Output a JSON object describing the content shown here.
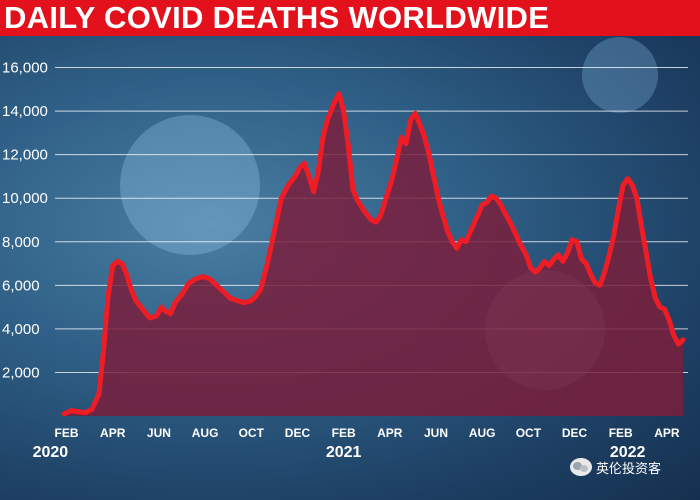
{
  "title": "DAILY COVID DEATHS WORLDWIDE",
  "watermark": "英伦投资客",
  "colors": {
    "title_bg": "#e3111b",
    "line": "#ee1c24",
    "area": "#7a1f3c",
    "grid": "#ffffff",
    "background": "#2f5f86"
  },
  "icons": [
    "virus-illustration",
    "wechat-icon"
  ],
  "chart_data": {
    "type": "area",
    "title": "DAILY COVID DEATHS WORLDWIDE",
    "xlabel": "",
    "ylabel": "",
    "ylim": [
      0,
      16000
    ],
    "yticks": [
      2000,
      4000,
      6000,
      8000,
      10000,
      12000,
      14000,
      16000
    ],
    "ytick_labels": [
      "2,000",
      "4,000",
      "6,000",
      "8,000",
      "10,000",
      "12,000",
      "14,000",
      "16,000"
    ],
    "grid": true,
    "legend": "none",
    "xtick_labels": [
      "FEB",
      "APR",
      "JUN",
      "AUG",
      "OCT",
      "DEC",
      "FEB",
      "APR",
      "JUN",
      "AUG",
      "OCT",
      "DEC",
      "FEB",
      "APR"
    ],
    "xtick_months": [
      1,
      3,
      5,
      7,
      9,
      11,
      13,
      15,
      17,
      19,
      21,
      23,
      25,
      27
    ],
    "year_labels": [
      {
        "label": "2020",
        "month": 0.3
      },
      {
        "label": "2021",
        "month": 13
      },
      {
        "label": "2022",
        "month": 25.3
      }
    ],
    "x_unit": "months since Jan 2020",
    "points": [
      [
        0.9,
        100
      ],
      [
        1.2,
        250
      ],
      [
        1.5,
        200
      ],
      [
        1.8,
        150
      ],
      [
        2.1,
        300
      ],
      [
        2.4,
        1000
      ],
      [
        2.6,
        3000
      ],
      [
        2.8,
        5500
      ],
      [
        3.0,
        6900
      ],
      [
        3.2,
        7100
      ],
      [
        3.4,
        7000
      ],
      [
        3.6,
        6500
      ],
      [
        3.8,
        5800
      ],
      [
        4.0,
        5300
      ],
      [
        4.3,
        4900
      ],
      [
        4.6,
        4500
      ],
      [
        4.9,
        4600
      ],
      [
        5.1,
        5000
      ],
      [
        5.3,
        4800
      ],
      [
        5.5,
        4700
      ],
      [
        5.7,
        5200
      ],
      [
        6.0,
        5600
      ],
      [
        6.3,
        6100
      ],
      [
        6.6,
        6300
      ],
      [
        6.9,
        6400
      ],
      [
        7.2,
        6300
      ],
      [
        7.5,
        6000
      ],
      [
        7.8,
        5700
      ],
      [
        8.1,
        5400
      ],
      [
        8.4,
        5300
      ],
      [
        8.7,
        5200
      ],
      [
        9.0,
        5300
      ],
      [
        9.2,
        5500
      ],
      [
        9.4,
        5800
      ],
      [
        9.7,
        7000
      ],
      [
        10.0,
        8500
      ],
      [
        10.3,
        10000
      ],
      [
        10.6,
        10600
      ],
      [
        10.9,
        11000
      ],
      [
        11.1,
        11400
      ],
      [
        11.3,
        11600
      ],
      [
        11.5,
        11000
      ],
      [
        11.7,
        10300
      ],
      [
        11.9,
        11200
      ],
      [
        12.1,
        12800
      ],
      [
        12.3,
        13600
      ],
      [
        12.6,
        14400
      ],
      [
        12.8,
        14800
      ],
      [
        13.0,
        14000
      ],
      [
        13.2,
        12400
      ],
      [
        13.4,
        10400
      ],
      [
        13.6,
        9900
      ],
      [
        13.9,
        9400
      ],
      [
        14.2,
        9000
      ],
      [
        14.4,
        8900
      ],
      [
        14.6,
        9200
      ],
      [
        14.9,
        10200
      ],
      [
        15.1,
        10900
      ],
      [
        15.3,
        11800
      ],
      [
        15.5,
        12800
      ],
      [
        15.7,
        12500
      ],
      [
        15.9,
        13600
      ],
      [
        16.1,
        13900
      ],
      [
        16.3,
        13400
      ],
      [
        16.5,
        12800
      ],
      [
        16.7,
        12000
      ],
      [
        16.9,
        11000
      ],
      [
        17.1,
        10000
      ],
      [
        17.3,
        9200
      ],
      [
        17.5,
        8500
      ],
      [
        17.7,
        8000
      ],
      [
        17.9,
        7700
      ],
      [
        18.1,
        8100
      ],
      [
        18.3,
        8000
      ],
      [
        18.5,
        8500
      ],
      [
        18.8,
        9200
      ],
      [
        19.0,
        9700
      ],
      [
        19.2,
        9800
      ],
      [
        19.4,
        10100
      ],
      [
        19.6,
        10000
      ],
      [
        19.8,
        9700
      ],
      [
        20.0,
        9300
      ],
      [
        20.3,
        8700
      ],
      [
        20.6,
        8000
      ],
      [
        20.9,
        7400
      ],
      [
        21.1,
        6800
      ],
      [
        21.3,
        6600
      ],
      [
        21.5,
        6800
      ],
      [
        21.7,
        7100
      ],
      [
        21.9,
        6900
      ],
      [
        22.1,
        7200
      ],
      [
        22.3,
        7400
      ],
      [
        22.5,
        7100
      ],
      [
        22.7,
        7500
      ],
      [
        22.9,
        8100
      ],
      [
        23.1,
        8000
      ],
      [
        23.3,
        7200
      ],
      [
        23.5,
        7000
      ],
      [
        23.7,
        6500
      ],
      [
        23.9,
        6100
      ],
      [
        24.1,
        6000
      ],
      [
        24.3,
        6600
      ],
      [
        24.5,
        7400
      ],
      [
        24.7,
        8300
      ],
      [
        24.9,
        9500
      ],
      [
        25.1,
        10600
      ],
      [
        25.3,
        10900
      ],
      [
        25.5,
        10600
      ],
      [
        25.7,
        10000
      ],
      [
        25.9,
        8700
      ],
      [
        26.1,
        7500
      ],
      [
        26.3,
        6300
      ],
      [
        26.5,
        5400
      ],
      [
        26.7,
        5000
      ],
      [
        26.9,
        4900
      ],
      [
        27.1,
        4400
      ],
      [
        27.3,
        3700
      ],
      [
        27.5,
        3300
      ],
      [
        27.7,
        3500
      ]
    ]
  }
}
